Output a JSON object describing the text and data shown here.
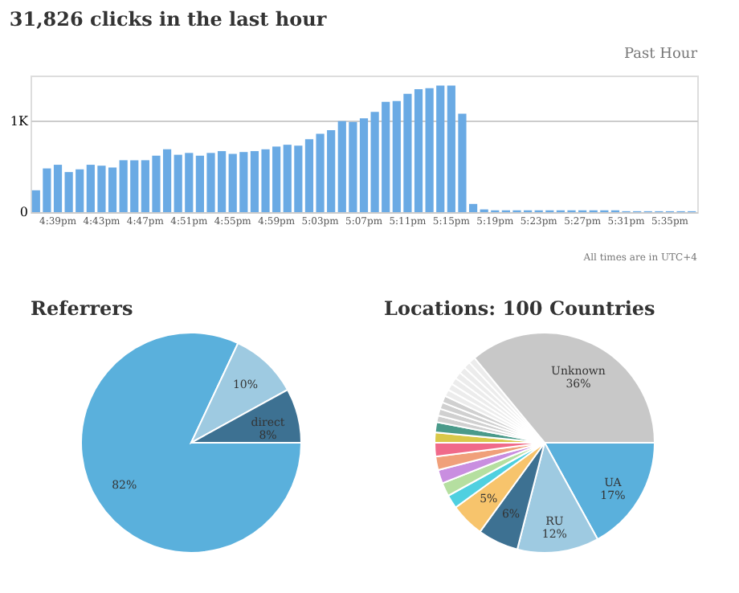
{
  "chart_data": [
    {
      "type": "bar",
      "title": "31,826 clicks in the last hour",
      "annotations": [
        "Past Hour",
        "All times are in UTC+4"
      ],
      "categories": [
        null,
        null,
        "4:39pm",
        null,
        null,
        null,
        "4:43pm",
        null,
        null,
        null,
        "4:47pm",
        null,
        null,
        null,
        "4:51pm",
        null,
        null,
        null,
        "4:55pm",
        null,
        null,
        null,
        "4:59pm",
        null,
        null,
        null,
        "5:03pm",
        null,
        null,
        null,
        "5:07pm",
        null,
        null,
        null,
        "5:11pm",
        null,
        null,
        null,
        "5:15pm",
        null,
        null,
        null,
        "5:19pm",
        null,
        null,
        null,
        "5:23pm",
        null,
        null,
        null,
        "5:27pm",
        null,
        null,
        null,
        "5:31pm",
        null,
        null,
        null,
        "5:35pm",
        null,
        null
      ],
      "values": [
        240,
        480,
        520,
        440,
        470,
        520,
        510,
        490,
        570,
        570,
        570,
        620,
        690,
        630,
        650,
        620,
        650,
        670,
        640,
        660,
        670,
        690,
        720,
        740,
        730,
        800,
        860,
        900,
        1000,
        990,
        1030,
        1100,
        1210,
        1220,
        1300,
        1350,
        1360,
        1390,
        1390,
        1080,
        90,
        30,
        20,
        20,
        20,
        20,
        20,
        20,
        20,
        20,
        20,
        20,
        20,
        20,
        10,
        10,
        10,
        10,
        10,
        10,
        10
      ],
      "color": "#6aaae4",
      "ylim": [
        0,
        1500
      ],
      "yticks": [
        0,
        {
          "value": 1000,
          "label": "1K"
        }
      ],
      "grid": "y"
    },
    {
      "type": "pie",
      "title": "Referrers",
      "categories": [
        null,
        null,
        "direct"
      ],
      "values": [
        82,
        10,
        8
      ],
      "colors": [
        "#5ab0dc",
        "#9ecae1",
        "#3d7192"
      ],
      "value_labels": [
        "82%",
        "10%",
        "8%"
      ]
    },
    {
      "type": "pie",
      "title": "Locations: 100 Countries",
      "categories": [
        "UA",
        "RU",
        null,
        null,
        null,
        null,
        null,
        null,
        null,
        null,
        null,
        null,
        null,
        null,
        null,
        null,
        null,
        null,
        null,
        null,
        null,
        null,
        "Unknown"
      ],
      "values": [
        17,
        12,
        6,
        5,
        2,
        2,
        2,
        2,
        2,
        1.5,
        1.5,
        1,
        1,
        1,
        1,
        1,
        1,
        1,
        1,
        1,
        1,
        1,
        36
      ],
      "colors": [
        "#5ab0dc",
        "#9ecae1",
        "#3d7192",
        "#f7c46c",
        "#4fd0e0",
        "#b5dfa0",
        "#c98ee0",
        "#f0a07a",
        "#f06a8a",
        "#d9c84a",
        "#4a9a8a",
        "#d0d0d0",
        "#d0d0d0",
        "#d0d0d0",
        "#d0d0d0",
        "#ececec",
        "#ececec",
        "#ececec",
        "#ececec",
        "#ececec",
        "#ececec",
        "#ececec",
        "#c8c8c8"
      ],
      "value_labels": [
        "17%",
        "12%",
        "6%",
        "5%",
        null,
        null,
        null,
        null,
        null,
        null,
        null,
        null,
        null,
        null,
        null,
        null,
        null,
        null,
        null,
        null,
        null,
        null,
        "36%"
      ]
    }
  ]
}
